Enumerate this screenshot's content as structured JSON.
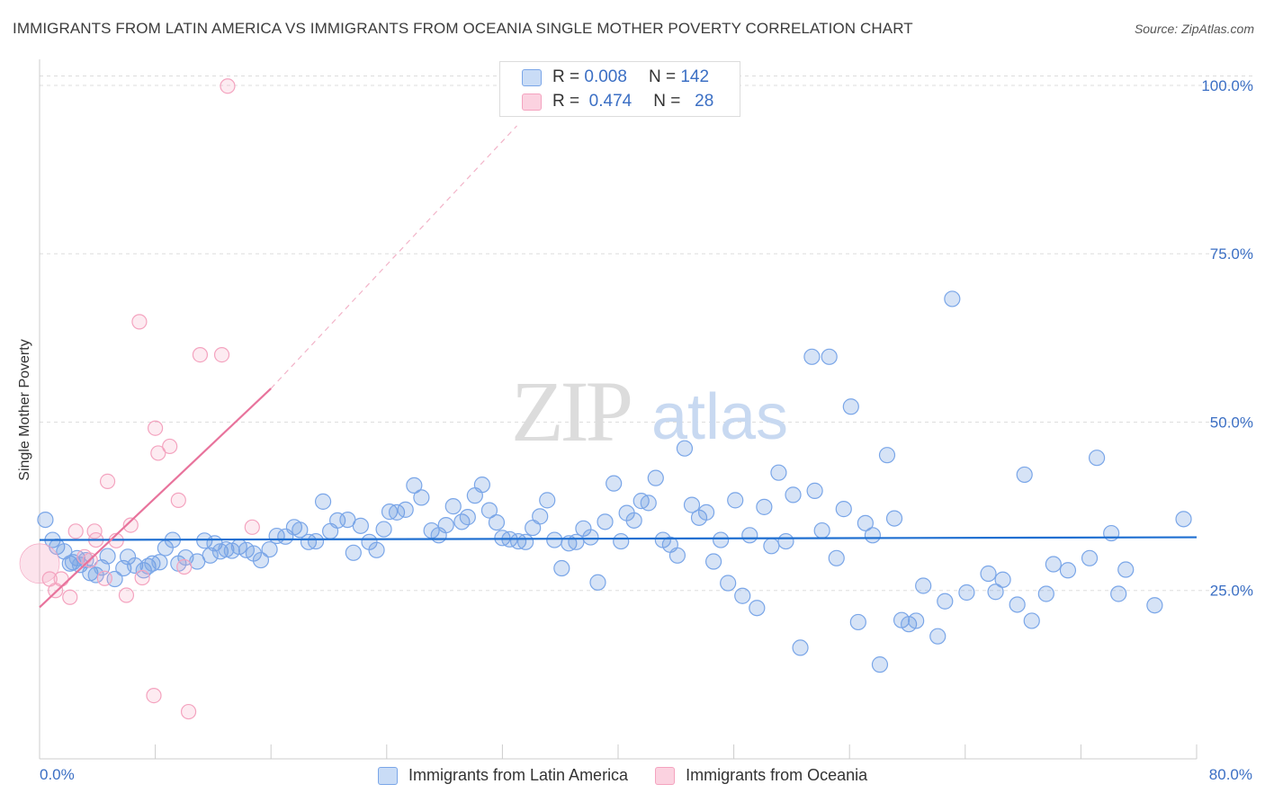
{
  "title": "IMMIGRANTS FROM LATIN AMERICA VS IMMIGRANTS FROM OCEANIA SINGLE MOTHER POVERTY CORRELATION CHART",
  "source": "Source: ZipAtlas.com",
  "watermark": {
    "zip": "ZIP",
    "atlas": "atlas"
  },
  "legend_top": {
    "rows": [
      {
        "r_label": "R =",
        "r_value": "0.008",
        "n_label": "N =",
        "n_value": "142",
        "color": "#7aa6e8"
      },
      {
        "r_label": "R =",
        "r_value": "0.474",
        "n_label": "N =",
        "n_value": "28",
        "color": "#f4a3bf"
      }
    ]
  },
  "legend_bottom": {
    "items": [
      {
        "label": "Immigrants from Latin America",
        "color": "#7aa6e8"
      },
      {
        "label": "Immigrants from Oceania",
        "color": "#f4a3bf"
      }
    ]
  },
  "chart_data": {
    "type": "scatter",
    "title": "IMMIGRANTS FROM LATIN AMERICA VS IMMIGRANTS FROM OCEANIA SINGLE MOTHER POVERTY CORRELATION CHART",
    "xlabel": "",
    "ylabel": "Single Mother Poverty",
    "x_tick_labels": [
      "0.0%",
      "80.0%"
    ],
    "y_tick_labels": [
      "25.0%",
      "50.0%",
      "75.0%",
      "100.0%"
    ],
    "y_ticks": [
      25,
      50,
      75,
      100
    ],
    "xlim": [
      0,
      80
    ],
    "ylim": [
      0,
      102
    ],
    "grid": true,
    "colors": {
      "latin": "#6a9be0",
      "oceania": "#f09bb8",
      "latin_line": "#1f6fd1",
      "oceania_line": "#e8739c"
    },
    "series": [
      {
        "name": "Immigrants from Latin America",
        "trend": {
          "x": [
            0,
            80
          ],
          "y": [
            32.5,
            32.9
          ]
        },
        "points": [
          [
            0.4,
            35.5
          ],
          [
            0.9,
            32.5
          ],
          [
            1.2,
            31.5
          ],
          [
            1.7,
            30.8
          ],
          [
            2.1,
            29.0
          ],
          [
            2.3,
            29.2
          ],
          [
            2.6,
            29.8
          ],
          [
            2.8,
            28.8
          ],
          [
            3.2,
            29.5
          ],
          [
            3.5,
            27.6
          ],
          [
            3.9,
            27.3
          ],
          [
            4.3,
            28.4
          ],
          [
            4.7,
            30.1
          ],
          [
            5.2,
            26.7
          ],
          [
            5.8,
            28.3
          ],
          [
            6.1,
            30.0
          ],
          [
            6.6,
            28.7
          ],
          [
            7.2,
            28.0
          ],
          [
            7.5,
            28.6
          ],
          [
            7.8,
            29.0
          ],
          [
            8.3,
            29.2
          ],
          [
            8.7,
            31.3
          ],
          [
            9.2,
            32.5
          ],
          [
            9.6,
            29.0
          ],
          [
            10.1,
            29.9
          ],
          [
            10.9,
            29.3
          ],
          [
            11.4,
            32.4
          ],
          [
            11.8,
            30.2
          ],
          [
            12.1,
            32.0
          ],
          [
            12.5,
            30.8
          ],
          [
            12.9,
            31.1
          ],
          [
            13.3,
            30.9
          ],
          [
            13.8,
            31.5
          ],
          [
            14.3,
            31.0
          ],
          [
            14.8,
            30.5
          ],
          [
            15.3,
            29.5
          ],
          [
            15.9,
            31.1
          ],
          [
            16.4,
            33.1
          ],
          [
            17.0,
            33.0
          ],
          [
            17.6,
            34.4
          ],
          [
            18.0,
            34.0
          ],
          [
            18.6,
            32.2
          ],
          [
            19.1,
            32.3
          ],
          [
            19.6,
            38.2
          ],
          [
            20.1,
            33.8
          ],
          [
            20.6,
            35.4
          ],
          [
            21.3,
            35.5
          ],
          [
            21.7,
            30.6
          ],
          [
            22.2,
            34.6
          ],
          [
            22.8,
            32.2
          ],
          [
            23.3,
            31.0
          ],
          [
            23.8,
            34.1
          ],
          [
            24.2,
            36.7
          ],
          [
            24.7,
            36.6
          ],
          [
            25.3,
            37.0
          ],
          [
            25.9,
            40.6
          ],
          [
            26.4,
            38.8
          ],
          [
            27.1,
            33.9
          ],
          [
            27.6,
            33.2
          ],
          [
            28.1,
            34.7
          ],
          [
            28.6,
            37.5
          ],
          [
            29.2,
            35.2
          ],
          [
            29.6,
            35.9
          ],
          [
            30.1,
            39.1
          ],
          [
            30.6,
            40.7
          ],
          [
            31.1,
            36.9
          ],
          [
            31.6,
            35.1
          ],
          [
            32.0,
            32.8
          ],
          [
            32.5,
            32.6
          ],
          [
            33.1,
            32.3
          ],
          [
            33.6,
            32.2
          ],
          [
            34.1,
            34.3
          ],
          [
            34.6,
            36.0
          ],
          [
            35.1,
            38.4
          ],
          [
            35.6,
            32.5
          ],
          [
            36.1,
            28.3
          ],
          [
            36.6,
            32.0
          ],
          [
            37.1,
            32.2
          ],
          [
            37.6,
            34.2
          ],
          [
            38.1,
            32.9
          ],
          [
            38.6,
            26.2
          ],
          [
            39.1,
            35.2
          ],
          [
            39.7,
            40.9
          ],
          [
            40.2,
            32.3
          ],
          [
            40.6,
            36.5
          ],
          [
            41.1,
            35.4
          ],
          [
            41.6,
            38.3
          ],
          [
            42.1,
            38.0
          ],
          [
            42.6,
            41.7
          ],
          [
            43.1,
            32.5
          ],
          [
            43.6,
            31.8
          ],
          [
            44.1,
            30.2
          ],
          [
            44.6,
            46.1
          ],
          [
            45.1,
            37.7
          ],
          [
            45.6,
            35.8
          ],
          [
            46.1,
            36.6
          ],
          [
            46.6,
            29.3
          ],
          [
            47.1,
            32.5
          ],
          [
            47.6,
            26.1
          ],
          [
            48.1,
            38.4
          ],
          [
            48.6,
            24.2
          ],
          [
            49.1,
            33.2
          ],
          [
            49.6,
            22.4
          ],
          [
            50.1,
            37.4
          ],
          [
            50.6,
            31.6
          ],
          [
            51.1,
            42.5
          ],
          [
            51.6,
            32.3
          ],
          [
            52.1,
            39.2
          ],
          [
            52.6,
            16.5
          ],
          [
            53.6,
            39.8
          ],
          [
            53.4,
            59.7
          ],
          [
            54.1,
            33.9
          ],
          [
            54.6,
            59.7
          ],
          [
            55.1,
            29.8
          ],
          [
            55.6,
            37.1
          ],
          [
            56.1,
            52.3
          ],
          [
            56.6,
            20.3
          ],
          [
            57.1,
            35.0
          ],
          [
            57.6,
            33.2
          ],
          [
            58.1,
            14.0
          ],
          [
            58.6,
            45.1
          ],
          [
            59.1,
            35.7
          ],
          [
            59.6,
            20.6
          ],
          [
            60.1,
            20.0
          ],
          [
            60.6,
            20.5
          ],
          [
            61.1,
            25.7
          ],
          [
            62.1,
            18.2
          ],
          [
            62.6,
            23.4
          ],
          [
            63.1,
            68.3
          ],
          [
            64.1,
            24.7
          ],
          [
            65.6,
            27.5
          ],
          [
            66.1,
            24.8
          ],
          [
            66.6,
            26.6
          ],
          [
            67.6,
            22.9
          ],
          [
            68.1,
            42.2
          ],
          [
            68.6,
            20.5
          ],
          [
            69.6,
            24.5
          ],
          [
            70.1,
            28.9
          ],
          [
            71.1,
            28.0
          ],
          [
            72.6,
            29.8
          ],
          [
            73.1,
            44.7
          ],
          [
            74.1,
            33.5
          ],
          [
            74.6,
            24.5
          ],
          [
            75.1,
            28.1
          ],
          [
            77.1,
            22.8
          ],
          [
            79.1,
            35.6
          ]
        ]
      },
      {
        "name": "Immigrants from Oceania",
        "trend": {
          "x": [
            0,
            16
          ],
          "y": [
            22.5,
            55.0
          ]
        },
        "trend_extension": {
          "x": [
            16,
            33
          ],
          "y": [
            55.0,
            94.0
          ]
        },
        "points": [
          [
            0.0,
            29.0
          ],
          [
            0.7,
            26.7
          ],
          [
            1.1,
            25.0
          ],
          [
            1.5,
            26.7
          ],
          [
            2.1,
            24.0
          ],
          [
            2.5,
            33.8
          ],
          [
            3.1,
            30.0
          ],
          [
            3.5,
            29.5
          ],
          [
            3.8,
            33.8
          ],
          [
            3.9,
            32.5
          ],
          [
            4.5,
            26.8
          ],
          [
            4.7,
            41.2
          ],
          [
            5.3,
            32.4
          ],
          [
            6.0,
            24.3
          ],
          [
            6.3,
            34.7
          ],
          [
            6.9,
            64.9
          ],
          [
            7.1,
            26.9
          ],
          [
            7.9,
            9.4
          ],
          [
            8.0,
            49.1
          ],
          [
            8.2,
            45.4
          ],
          [
            9.0,
            46.4
          ],
          [
            9.6,
            38.4
          ],
          [
            10.0,
            28.5
          ],
          [
            10.3,
            7.0
          ],
          [
            11.1,
            60.0
          ],
          [
            12.6,
            60.0
          ],
          [
            13.0,
            99.9
          ],
          [
            14.7,
            34.4
          ]
        ]
      }
    ]
  }
}
